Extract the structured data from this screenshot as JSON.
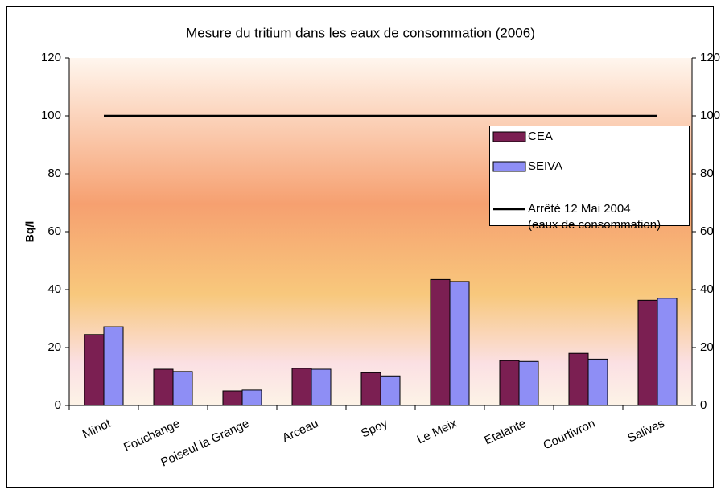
{
  "chart_data": {
    "type": "bar",
    "title": "Mesure du tritium dans les eaux de consommation (2006)",
    "y_label": "Bq/l",
    "categories": [
      "Minot",
      "Fouchange",
      "Poiseul la Grange",
      "Arceau",
      "Spoy",
      "Le Meix",
      "Etalante",
      "Courtivron",
      "Salives"
    ],
    "series": [
      {
        "name": "CEA",
        "color": "#7b1f52",
        "values": [
          24.5,
          12.5,
          5,
          12.8,
          11.3,
          43.5,
          15.5,
          18,
          36.3
        ]
      },
      {
        "name": "SEIVA",
        "color": "#8e8ef5",
        "values": [
          27.2,
          11.7,
          5.3,
          12.5,
          10.2,
          42.8,
          15.2,
          16,
          37
        ]
      },
      {
        "name": "Arrêté 12 Mai 2004\n(eaux de consommation)",
        "type": "line",
        "color": "#000000",
        "values": [
          100,
          100,
          100,
          100,
          100,
          100,
          100,
          100,
          100
        ]
      }
    ],
    "ylim": [
      0,
      120
    ],
    "yticks": [
      0,
      20,
      40,
      60,
      80,
      100,
      120
    ],
    "y2lim": [
      0,
      120
    ],
    "y2ticks": [
      0,
      20,
      40,
      60,
      80,
      100,
      120
    ],
    "legend": "right"
  }
}
